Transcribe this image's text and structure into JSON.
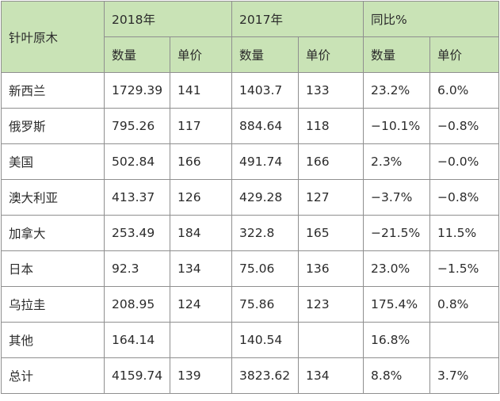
{
  "table": {
    "corner_label": "针叶原木",
    "years": [
      "2018年",
      "2017年",
      "同比%"
    ],
    "sub_headers": [
      "数量",
      "单价",
      "数量",
      "单价",
      "数量",
      "单价"
    ],
    "rows": [
      {
        "country": "新西兰",
        "v2018_qty": "1729.39",
        "v2018_price": "141",
        "v2017_qty": "1403.7",
        "v2017_price": "133",
        "yoy_qty": "23.2%",
        "yoy_price": "6.0%"
      },
      {
        "country": "俄罗斯",
        "v2018_qty": "795.26",
        "v2018_price": "117",
        "v2017_qty": "884.64",
        "v2017_price": "118",
        "yoy_qty": "−10.1%",
        "yoy_price": "−0.8%"
      },
      {
        "country": "美国",
        "v2018_qty": "502.84",
        "v2018_price": "166",
        "v2017_qty": "491.74",
        "v2017_price": "166",
        "yoy_qty": "2.3%",
        "yoy_price": "−0.0%"
      },
      {
        "country": "澳大利亚",
        "v2018_qty": "413.37",
        "v2018_price": "126",
        "v2017_qty": "429.28",
        "v2017_price": "127",
        "yoy_qty": "−3.7%",
        "yoy_price": "−0.8%"
      },
      {
        "country": "加拿大",
        "v2018_qty": "253.49",
        "v2018_price": "184",
        "v2017_qty": "322.8",
        "v2017_price": "165",
        "yoy_qty": "−21.5%",
        "yoy_price": "11.5%"
      },
      {
        "country": "日本",
        "v2018_qty": "92.3",
        "v2018_price": "134",
        "v2017_qty": "75.06",
        "v2017_price": "136",
        "yoy_qty": "23.0%",
        "yoy_price": "−1.5%"
      },
      {
        "country": "乌拉圭",
        "v2018_qty": "208.95",
        "v2018_price": "124",
        "v2017_qty": "75.86",
        "v2017_price": "123",
        "yoy_qty": "175.4%",
        "yoy_price": "0.8%"
      },
      {
        "country": "其他",
        "v2018_qty": "164.14",
        "v2018_price": "",
        "v2017_qty": "140.54",
        "v2017_price": "",
        "yoy_qty": "16.8%",
        "yoy_price": ""
      },
      {
        "country": "总计",
        "v2018_qty": "4159.74",
        "v2018_price": "139",
        "v2017_qty": "3823.62",
        "v2017_price": "134",
        "yoy_qty": "8.8%",
        "yoy_price": "3.7%"
      }
    ],
    "colors": {
      "header_bg": "#c9e3b6",
      "border": "#8f8f8f",
      "text": "#2b2b2b"
    }
  }
}
